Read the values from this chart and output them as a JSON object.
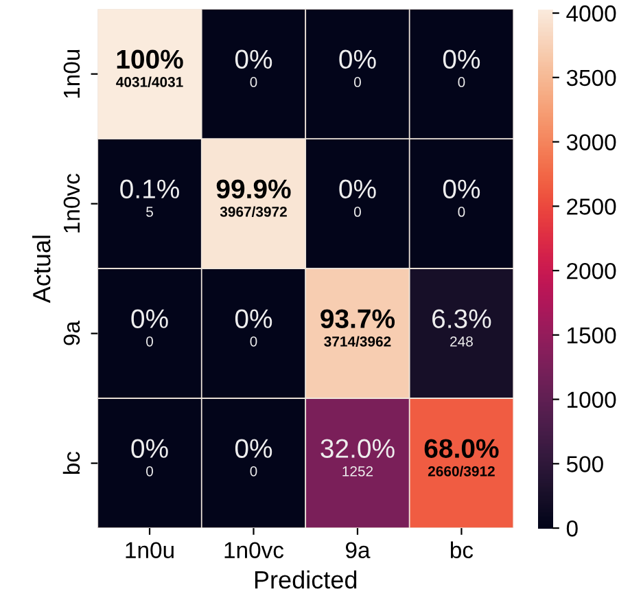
{
  "chart_data": {
    "type": "heatmap",
    "xlabel": "Predicted",
    "ylabel": "Actual",
    "categories": [
      "1n0u",
      "1n0vc",
      "9a",
      "bc"
    ],
    "y_categories": [
      "1n0u",
      "1n0vc",
      "9a",
      "bc"
    ],
    "cells": [
      [
        4031,
        0,
        0,
        0
      ],
      [
        5,
        3967,
        0,
        0
      ],
      [
        0,
        0,
        3714,
        248
      ],
      [
        0,
        0,
        1252,
        2660
      ]
    ],
    "cell_labels": [
      [
        "100%\n4031/4031",
        "0%\n0",
        "0%\n0",
        "0%\n0"
      ],
      [
        "0.1%\n5",
        "99.9%\n3967/3972",
        "0%\n0",
        "0%\n0"
      ],
      [
        "0%\n0",
        "0%\n0",
        "93.7%\n3714/3962",
        "6.3%\n248"
      ],
      [
        "0%\n0",
        "0%\n0",
        "32.0%\n1252",
        "68.0%\n2660/3912"
      ]
    ],
    "clim": [
      0,
      4031
    ],
    "cticks": [
      0,
      500,
      1000,
      1500,
      2000,
      2500,
      3000,
      3500,
      4000
    ]
  }
}
